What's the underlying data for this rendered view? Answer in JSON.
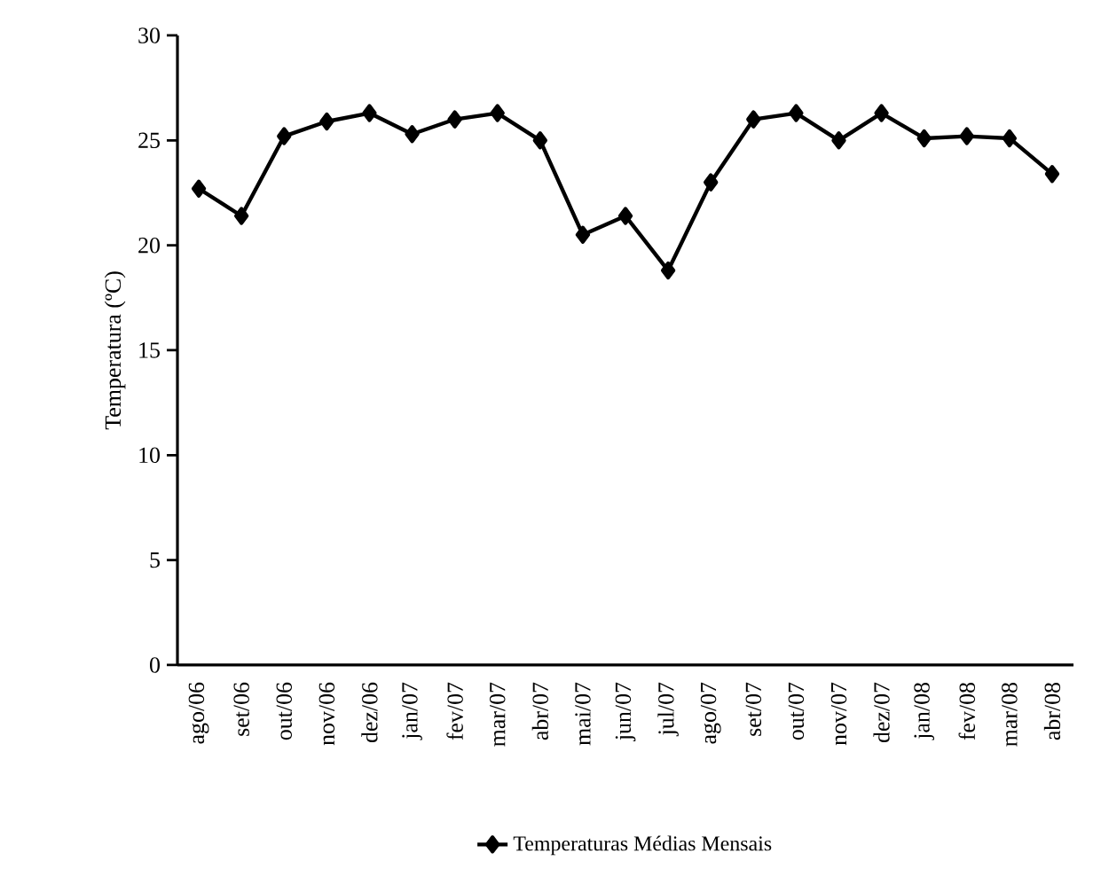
{
  "chart_data": {
    "type": "line",
    "ylabel": "Temperatura (ºC)",
    "categories": [
      "ago/06",
      "set/06",
      "out/06",
      "nov/06",
      "dez/06",
      "jan/07",
      "fev/07",
      "mar/07",
      "abr/07",
      "mai/07",
      "jun/07",
      "jul/07",
      "ago/07",
      "set/07",
      "out/07",
      "nov/07",
      "dez/07",
      "jan/08",
      "fev/08",
      "mar/08",
      "abr/08"
    ],
    "series": [
      {
        "name": "Temperaturas Médias Mensais",
        "color": "#000000",
        "values": [
          22.7,
          21.4,
          25.2,
          25.9,
          26.3,
          25.3,
          26.0,
          26.3,
          25.0,
          20.5,
          21.4,
          18.8,
          23.0,
          26.0,
          26.3,
          25.0,
          26.3,
          25.1,
          25.2,
          25.1,
          23.4
        ]
      }
    ],
    "ylim": [
      0,
      30
    ],
    "yticks": [
      0,
      5,
      10,
      15,
      20,
      25,
      30
    ],
    "grid": false,
    "legend": "bottom",
    "marker": "diamond",
    "line_style": "solid"
  }
}
